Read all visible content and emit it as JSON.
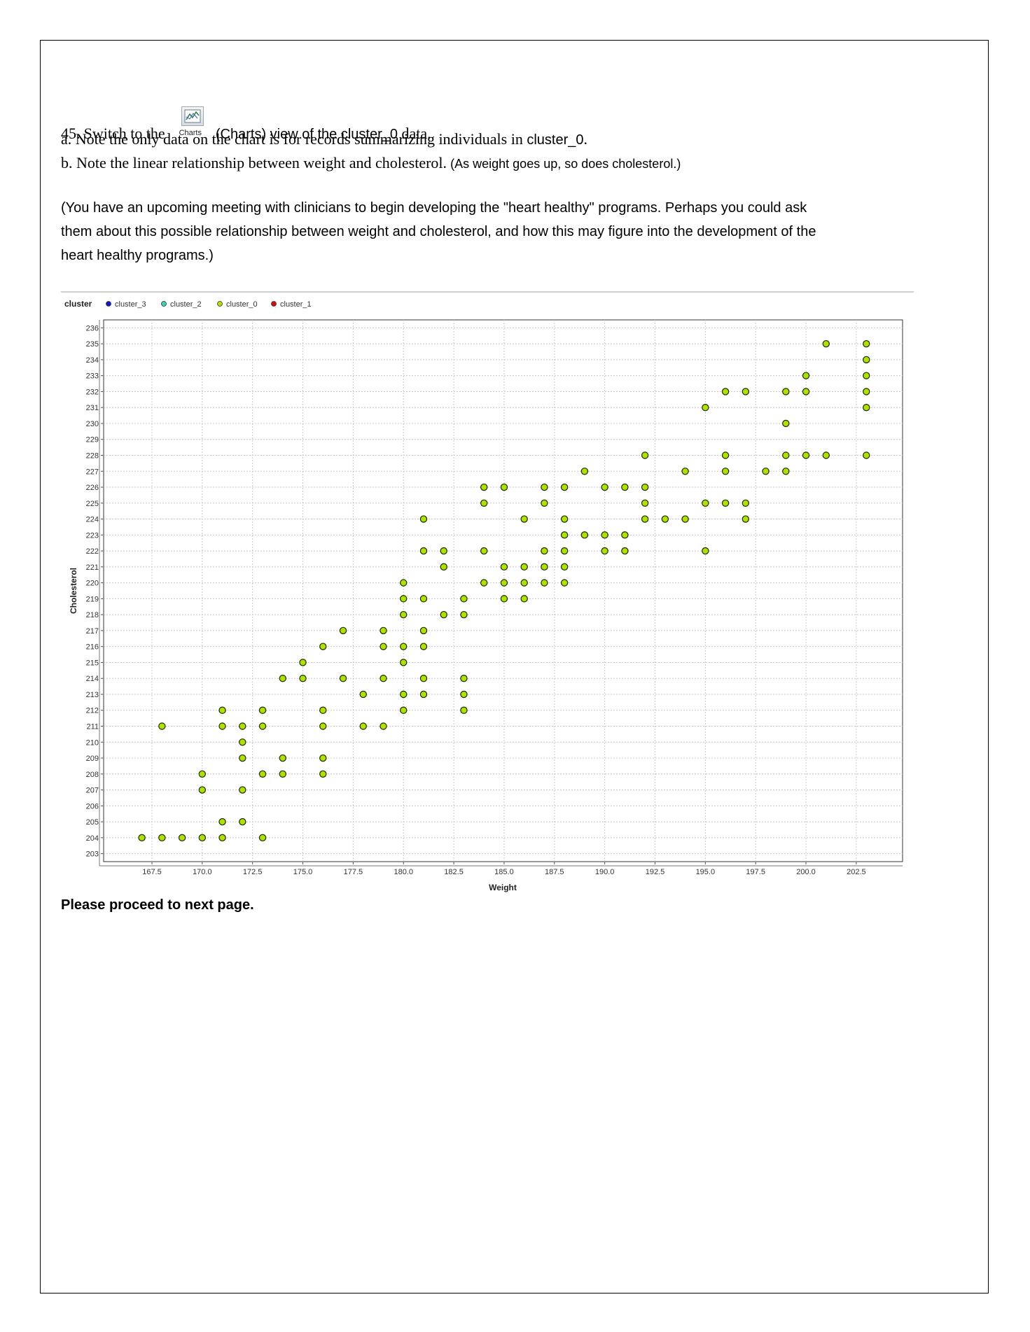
{
  "instructions": {
    "step_number": "45.",
    "step_text_before": "Switch to the",
    "charts_icon_label": "Charts",
    "step_text_after_a": "(Charts) view of the ",
    "step_text_after_b": "cluster_0",
    "step_text_after_c": " data.",
    "note_a_serif": "a. Note the only data on the chart is for records summarizing individuals in ",
    "note_a_sans": "cluster_0",
    "note_a_end": ".",
    "note_b_serif": "b. Note the linear relationship between weight and cholesterol.",
    "note_b_sans": "(As weight goes up, so does cholesterol.)",
    "paragraph_line1": "(You have an upcoming meeting with clinicians to begin developing the \"heart healthy\" programs. Perhaps you could ask",
    "paragraph_line2": "them about this possible relationship between weight and cholesterol, and how this may figure into the development of the",
    "paragraph_line3": "heart healthy programs.)",
    "footer": "Please proceed to next page."
  },
  "colors": {
    "point_fill": "#aee000",
    "point_stroke": "#1a2a00",
    "cluster_3": "#1515c8",
    "cluster_2": "#2fd4b0",
    "cluster_0": "#aee000",
    "cluster_1": "#d01010"
  },
  "chart_data": {
    "type": "scatter",
    "legend_title": "cluster",
    "legend": [
      "cluster_3",
      "cluster_2",
      "cluster_0",
      "cluster_1"
    ],
    "xlabel": "Weight",
    "ylabel": "Cholesterol",
    "xlim": [
      165.1,
      204.8
    ],
    "ylim": [
      202.5,
      236.5
    ],
    "xticks": [
      "167.5",
      "170.0",
      "172.5",
      "175.0",
      "177.5",
      "180.0",
      "182.5",
      "185.0",
      "187.5",
      "190.0",
      "192.5",
      "195.0",
      "197.5",
      "200.0",
      "202.5"
    ],
    "yticks": [
      "203",
      "204",
      "205",
      "206",
      "207",
      "208",
      "209",
      "210",
      "211",
      "212",
      "213",
      "214",
      "215",
      "216",
      "217",
      "218",
      "219",
      "220",
      "221",
      "222",
      "223",
      "224",
      "225",
      "226",
      "227",
      "228",
      "229",
      "230",
      "231",
      "232",
      "233",
      "234",
      "235",
      "236"
    ],
    "series": [
      {
        "name": "cluster_0",
        "points": [
          [
            167,
            204
          ],
          [
            168,
            204
          ],
          [
            169,
            204
          ],
          [
            170,
            204
          ],
          [
            171,
            204
          ],
          [
            173,
            204
          ],
          [
            171,
            205
          ],
          [
            172,
            205
          ],
          [
            170,
            207
          ],
          [
            172,
            207
          ],
          [
            170,
            208
          ],
          [
            173,
            208
          ],
          [
            174,
            208
          ],
          [
            176,
            208
          ],
          [
            172,
            209
          ],
          [
            174,
            209
          ],
          [
            176,
            209
          ],
          [
            172,
            210
          ],
          [
            168,
            211
          ],
          [
            171,
            211
          ],
          [
            172,
            211
          ],
          [
            173,
            211
          ],
          [
            176,
            211
          ],
          [
            178,
            211
          ],
          [
            179,
            211
          ],
          [
            171,
            212
          ],
          [
            173,
            212
          ],
          [
            176,
            212
          ],
          [
            180,
            212
          ],
          [
            183,
            212
          ],
          [
            178,
            213
          ],
          [
            180,
            213
          ],
          [
            181,
            213
          ],
          [
            183,
            213
          ],
          [
            174,
            214
          ],
          [
            175,
            214
          ],
          [
            177,
            214
          ],
          [
            179,
            214
          ],
          [
            181,
            214
          ],
          [
            183,
            214
          ],
          [
            175,
            215
          ],
          [
            180,
            215
          ],
          [
            176,
            216
          ],
          [
            179,
            216
          ],
          [
            180,
            216
          ],
          [
            181,
            216
          ],
          [
            177,
            217
          ],
          [
            179,
            217
          ],
          [
            181,
            217
          ],
          [
            180,
            218
          ],
          [
            182,
            218
          ],
          [
            183,
            218
          ],
          [
            180,
            219
          ],
          [
            181,
            219
          ],
          [
            183,
            219
          ],
          [
            185,
            219
          ],
          [
            186,
            219
          ],
          [
            180,
            220
          ],
          [
            184,
            220
          ],
          [
            185,
            220
          ],
          [
            186,
            220
          ],
          [
            187,
            220
          ],
          [
            188,
            220
          ],
          [
            182,
            221
          ],
          [
            185,
            221
          ],
          [
            186,
            221
          ],
          [
            187,
            221
          ],
          [
            188,
            221
          ],
          [
            181,
            222
          ],
          [
            182,
            222
          ],
          [
            184,
            222
          ],
          [
            187,
            222
          ],
          [
            188,
            222
          ],
          [
            190,
            222
          ],
          [
            191,
            222
          ],
          [
            195,
            222
          ],
          [
            188,
            223
          ],
          [
            189,
            223
          ],
          [
            190,
            223
          ],
          [
            191,
            223
          ],
          [
            181,
            224
          ],
          [
            186,
            224
          ],
          [
            188,
            224
          ],
          [
            192,
            224
          ],
          [
            193,
            224
          ],
          [
            194,
            224
          ],
          [
            197,
            224
          ],
          [
            184,
            225
          ],
          [
            187,
            225
          ],
          [
            192,
            225
          ],
          [
            195,
            225
          ],
          [
            196,
            225
          ],
          [
            197,
            225
          ],
          [
            184,
            226
          ],
          [
            185,
            226
          ],
          [
            187,
            226
          ],
          [
            188,
            226
          ],
          [
            190,
            226
          ],
          [
            191,
            226
          ],
          [
            192,
            226
          ],
          [
            189,
            227
          ],
          [
            194,
            227
          ],
          [
            196,
            227
          ],
          [
            198,
            227
          ],
          [
            199,
            227
          ],
          [
            192,
            228
          ],
          [
            196,
            228
          ],
          [
            199,
            228
          ],
          [
            200,
            228
          ],
          [
            201,
            228
          ],
          [
            203,
            228
          ],
          [
            199,
            230
          ],
          [
            195,
            231
          ],
          [
            203,
            231
          ],
          [
            196,
            232
          ],
          [
            197,
            232
          ],
          [
            199,
            232
          ],
          [
            200,
            232
          ],
          [
            203,
            232
          ],
          [
            200,
            233
          ],
          [
            203,
            233
          ],
          [
            203,
            234
          ],
          [
            201,
            235
          ],
          [
            203,
            235
          ]
        ]
      }
    ]
  }
}
